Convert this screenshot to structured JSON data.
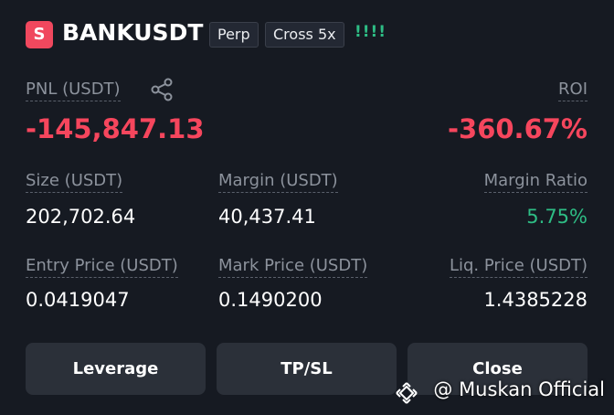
{
  "header": {
    "badge": "S",
    "symbol": "BANKUSDT",
    "tags": [
      "Perp",
      "Cross 5x"
    ],
    "indicator": "!!!!"
  },
  "pnl": {
    "label": "PNL (USDT)",
    "value": "-145,847.13"
  },
  "roi": {
    "label": "ROI",
    "value": "-360.67%"
  },
  "stats": [
    [
      {
        "label": "Size (USDT)",
        "value": "202,702.64"
      },
      {
        "label": "Margin (USDT)",
        "value": "40,437.41"
      },
      {
        "label": "Margin Ratio",
        "value": "5.75%"
      }
    ],
    [
      {
        "label": "Entry Price (USDT)",
        "value": "0.0419047"
      },
      {
        "label": "Mark Price (USDT)",
        "value": "0.1490200"
      },
      {
        "label": "Liq. Price (USDT)",
        "value": "1.4385228"
      }
    ]
  ],
  "buttons": [
    "Leverage",
    "TP/SL",
    "Close"
  ],
  "watermark": "@ Muskan Official"
}
